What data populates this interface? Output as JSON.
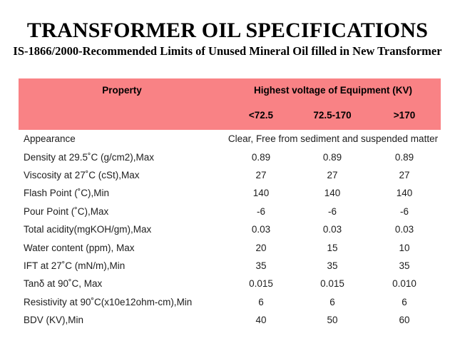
{
  "slide": {
    "title": "TRANSFORMER OIL SPECIFICATIONS",
    "subtitle": "IS-1866/2000-Recommended Limits of Unused Mineral Oil filled in New Transformer"
  },
  "colors": {
    "header_bg": "#f98285",
    "text": "#000000"
  },
  "table": {
    "header": {
      "property_label": "Property",
      "voltage_group_label": "Highest voltage of Equipment (KV)",
      "voltage_columns": [
        "<72.5",
        "72.5-170",
        ">170"
      ]
    },
    "rows": [
      {
        "property": "Appearance",
        "values": [
          "Clear, Free from sediment and suspended matter"
        ]
      },
      {
        "property": "Density at 29.5˚C (g/cm2),Max",
        "values": [
          "0.89",
          "0.89",
          "0.89"
        ]
      },
      {
        "property": "Viscosity at 27˚C (cSt),Max",
        "values": [
          "27",
          "27",
          "27"
        ]
      },
      {
        "property": "Flash Point (˚C),Min",
        "values": [
          "140",
          "140",
          "140"
        ]
      },
      {
        "property": "Pour Point (˚C),Max",
        "values": [
          "-6",
          "-6",
          "-6"
        ]
      },
      {
        "property": "Total acidity(mgKOH/gm),Max",
        "values": [
          "0.03",
          "0.03",
          "0.03"
        ]
      },
      {
        "property": "Water content (ppm), Max",
        "values": [
          "20",
          "15",
          "10"
        ]
      },
      {
        "property": "IFT at 27˚C (mN/m),Min",
        "values": [
          "35",
          "35",
          "35"
        ]
      },
      {
        "property": "Tanδ at 90˚C, Max",
        "values": [
          "0.015",
          "0.015",
          "0.010"
        ]
      },
      {
        "property": "Resistivity at 90˚C(x10e12ohm-cm),Min",
        "values": [
          "6",
          "6",
          "6"
        ]
      },
      {
        "property": "BDV (KV),Min",
        "values": [
          "40",
          "50",
          "60"
        ]
      }
    ]
  }
}
